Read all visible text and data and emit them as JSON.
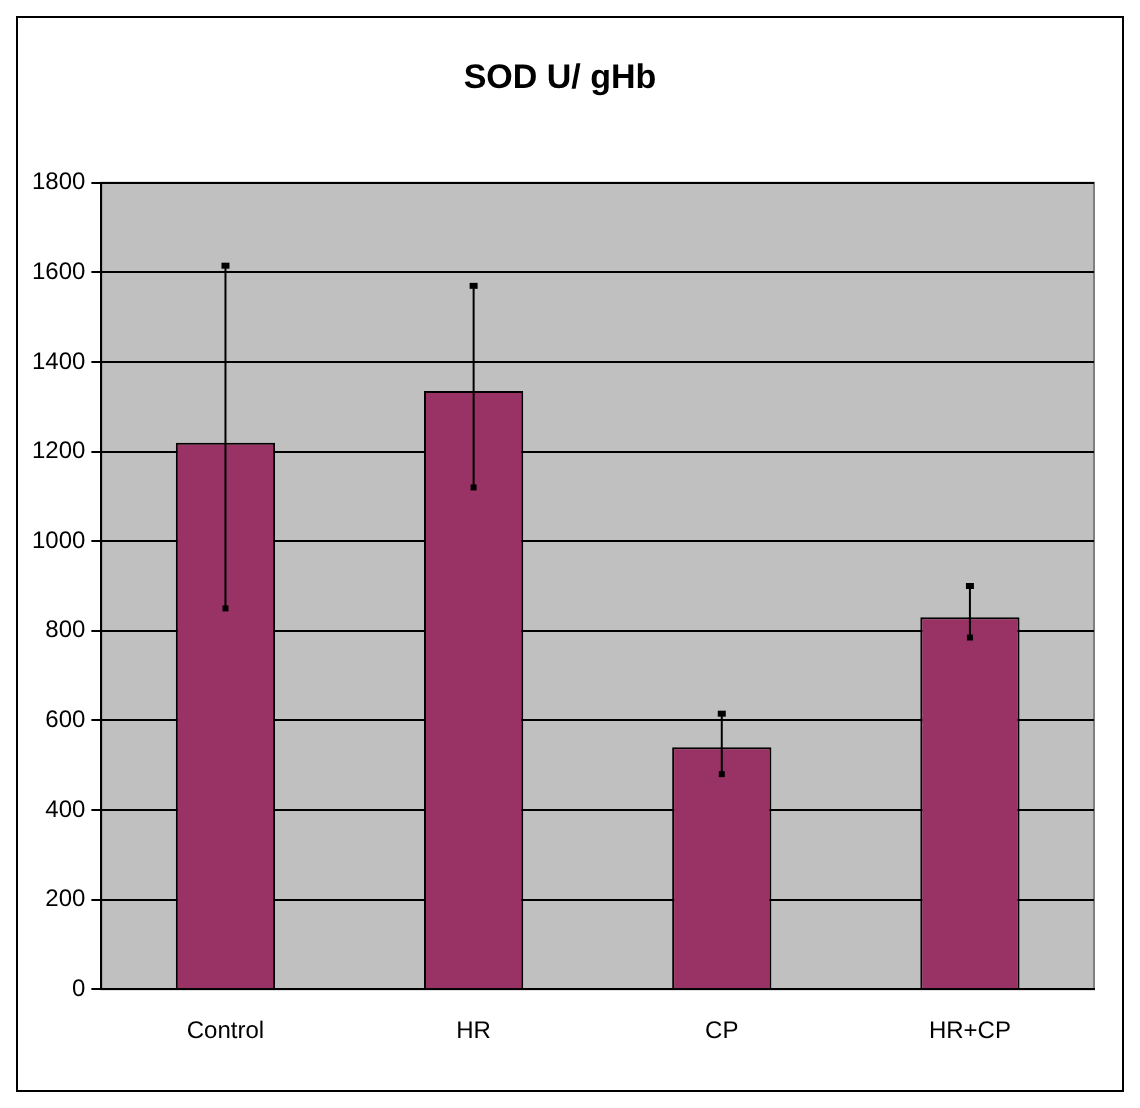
{
  "chart_data": {
    "type": "bar",
    "title": "SOD U/ gHb",
    "categories": [
      "Control",
      "HR",
      "CP",
      "HR+CP"
    ],
    "values": [
      1220,
      1335,
      540,
      830
    ],
    "errors": [
      [
        850,
        1615
      ],
      [
        1120,
        1570
      ],
      [
        480,
        615
      ],
      [
        785,
        900
      ]
    ],
    "color": "#993366",
    "ylim": [
      0,
      1800
    ],
    "yticks": [
      0,
      200,
      400,
      600,
      800,
      1000,
      1200,
      1400,
      1600,
      1800
    ],
    "grid": "y",
    "legend": false
  }
}
